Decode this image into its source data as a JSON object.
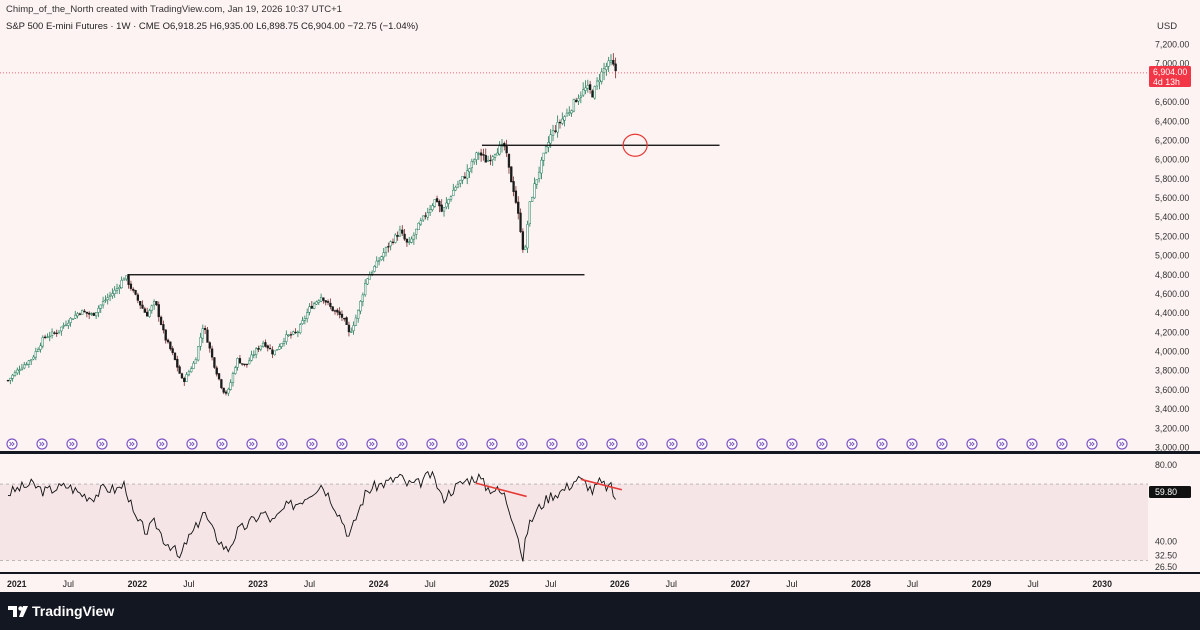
{
  "header": {
    "credit": "Chimp_of_the_North created with TradingView.com, Jan 19, 2026 10:37 UTC+1",
    "symbol_line": "S&P 500 E-mini Futures · 1W · CME  O6,918.25  H6,935.00  L6,898.75  C6,904.00  −72.75 (−1.04%)",
    "currency": "USD"
  },
  "last_price": {
    "value": 6904.0,
    "label": "6,904.00",
    "countdown": "4d 13h",
    "color": "#f23645"
  },
  "colors": {
    "up": "#26a69a",
    "down": "#ef5350",
    "candle_body": "#1b1b1b",
    "accent": "#7e57c2",
    "rsi_line": "#111111",
    "annotation": "#e53935"
  },
  "footer": {
    "brand": "TradingView"
  },
  "chart_data": [
    {
      "type": "candlestick",
      "title": "S&P 500 E-mini Futures",
      "timeframe": "1W",
      "ylim": [
        3000,
        7300
      ],
      "y_ticks": [
        "7,200.00",
        "7,000.00",
        "6,600.00",
        "6,400.00",
        "6,200.00",
        "6,000.00",
        "5,800.00",
        "5,600.00",
        "5,400.00",
        "5,200.00",
        "5,000.00",
        "4,800.00",
        "4,600.00",
        "4,400.00",
        "4,200.00",
        "4,000.00",
        "3,800.00",
        "3,600.00",
        "3,400.00",
        "3,200.00",
        "3,000.00"
      ],
      "x_ticks": [
        "2021",
        "Jul",
        "2022",
        "Jul",
        "2023",
        "Jul",
        "2024",
        "Jul",
        "2025",
        "Jul",
        "2026",
        "Jul",
        "2027",
        "Jul",
        "2028",
        "Jul",
        "2029",
        "Jul",
        "2030"
      ],
      "x_range": [
        2021.0,
        2030.3
      ],
      "price_path": [
        [
          2021.0,
          3700
        ],
        [
          2021.1,
          3830
        ],
        [
          2021.2,
          3930
        ],
        [
          2021.3,
          4150
        ],
        [
          2021.4,
          4200
        ],
        [
          2021.5,
          4320
        ],
        [
          2021.6,
          4420
        ],
        [
          2021.7,
          4380
        ],
        [
          2021.8,
          4530
        ],
        [
          2021.9,
          4650
        ],
        [
          2021.97,
          4790
        ],
        [
          2022.05,
          4590
        ],
        [
          2022.15,
          4380
        ],
        [
          2022.22,
          4520
        ],
        [
          2022.3,
          4150
        ],
        [
          2022.37,
          3960
        ],
        [
          2022.45,
          3680
        ],
        [
          2022.55,
          3900
        ],
        [
          2022.62,
          4280
        ],
        [
          2022.7,
          3900
        ],
        [
          2022.78,
          3600
        ],
        [
          2022.82,
          3560
        ],
        [
          2022.9,
          3920
        ],
        [
          2022.97,
          3850
        ],
        [
          2023.05,
          4000
        ],
        [
          2023.12,
          4100
        ],
        [
          2023.2,
          3980
        ],
        [
          2023.3,
          4150
        ],
        [
          2023.4,
          4200
        ],
        [
          2023.5,
          4450
        ],
        [
          2023.6,
          4580
        ],
        [
          2023.68,
          4450
        ],
        [
          2023.78,
          4350
        ],
        [
          2023.83,
          4180
        ],
        [
          2023.9,
          4400
        ],
        [
          2023.97,
          4750
        ],
        [
          2024.05,
          4900
        ],
        [
          2024.15,
          5100
        ],
        [
          2024.25,
          5250
        ],
        [
          2024.32,
          5100
        ],
        [
          2024.4,
          5300
        ],
        [
          2024.5,
          5500
        ],
        [
          2024.55,
          5600
        ],
        [
          2024.6,
          5450
        ],
        [
          2024.7,
          5700
        ],
        [
          2024.8,
          5850
        ],
        [
          2024.9,
          6080
        ],
        [
          2024.97,
          5980
        ],
        [
          2025.05,
          6100
        ],
        [
          2025.12,
          6140
        ],
        [
          2025.16,
          5850
        ],
        [
          2025.2,
          5650
        ],
        [
          2025.26,
          5200
        ],
        [
          2025.28,
          4950
        ],
        [
          2025.32,
          5500
        ],
        [
          2025.37,
          5750
        ],
        [
          2025.42,
          5950
        ],
        [
          2025.5,
          6250
        ],
        [
          2025.58,
          6400
        ],
        [
          2025.65,
          6500
        ],
        [
          2025.72,
          6650
        ],
        [
          2025.8,
          6750
        ],
        [
          2025.85,
          6680
        ],
        [
          2025.9,
          6850
        ],
        [
          2025.95,
          6960
        ],
        [
          2026.0,
          7010
        ],
        [
          2026.05,
          6904
        ]
      ],
      "horizontal_lines": [
        {
          "price": 6150,
          "from": 2024.93,
          "to": 2026.9
        },
        {
          "price": 4800,
          "from": 2021.99,
          "to": 2025.78
        }
      ],
      "annotation_circle": {
        "x": 2026.2,
        "price": 6150
      },
      "events_row": {
        "count": 38,
        "label": "event-marker"
      }
    },
    {
      "type": "line",
      "title": "RSI",
      "current_value": 59.8,
      "current_label": "59.80",
      "ylim": [
        25,
        83
      ],
      "y_ticks": [
        "80.00",
        "59.80",
        "40.00",
        "32.50",
        "26.50"
      ],
      "band": [
        30,
        70
      ],
      "rsi_path": [
        [
          2021.0,
          65
        ],
        [
          2021.1,
          68
        ],
        [
          2021.2,
          70
        ],
        [
          2021.3,
          66
        ],
        [
          2021.4,
          68
        ],
        [
          2021.5,
          69
        ],
        [
          2021.6,
          65
        ],
        [
          2021.7,
          63
        ],
        [
          2021.8,
          68
        ],
        [
          2021.9,
          67
        ],
        [
          2021.97,
          70
        ],
        [
          2022.05,
          52
        ],
        [
          2022.15,
          45
        ],
        [
          2022.22,
          50
        ],
        [
          2022.3,
          40
        ],
        [
          2022.37,
          37
        ],
        [
          2022.42,
          30
        ],
        [
          2022.48,
          40
        ],
        [
          2022.55,
          46
        ],
        [
          2022.62,
          56
        ],
        [
          2022.7,
          45
        ],
        [
          2022.78,
          38
        ],
        [
          2022.82,
          35
        ],
        [
          2022.9,
          45
        ],
        [
          2022.97,
          48
        ],
        [
          2023.05,
          52
        ],
        [
          2023.12,
          55
        ],
        [
          2023.2,
          50
        ],
        [
          2023.3,
          58
        ],
        [
          2023.4,
          60
        ],
        [
          2023.5,
          65
        ],
        [
          2023.6,
          70
        ],
        [
          2023.68,
          62
        ],
        [
          2023.78,
          50
        ],
        [
          2023.83,
          42
        ],
        [
          2023.9,
          55
        ],
        [
          2023.97,
          66
        ],
        [
          2024.05,
          69
        ],
        [
          2024.15,
          71
        ],
        [
          2024.25,
          74
        ],
        [
          2024.3,
          70
        ],
        [
          2024.4,
          70
        ],
        [
          2024.5,
          75
        ],
        [
          2024.55,
          71
        ],
        [
          2024.6,
          62
        ],
        [
          2024.7,
          68
        ],
        [
          2024.8,
          72
        ],
        [
          2024.9,
          74
        ],
        [
          2024.97,
          68
        ],
        [
          2025.05,
          67
        ],
        [
          2025.12,
          64
        ],
        [
          2025.16,
          56
        ],
        [
          2025.2,
          50
        ],
        [
          2025.24,
          40
        ],
        [
          2025.27,
          29
        ],
        [
          2025.3,
          45
        ],
        [
          2025.37,
          55
        ],
        [
          2025.45,
          61
        ],
        [
          2025.5,
          64
        ],
        [
          2025.58,
          66
        ],
        [
          2025.65,
          69
        ],
        [
          2025.72,
          73
        ],
        [
          2025.8,
          70
        ],
        [
          2025.85,
          66
        ],
        [
          2025.9,
          71
        ],
        [
          2025.95,
          69
        ],
        [
          2026.0,
          68
        ],
        [
          2026.05,
          60
        ]
      ],
      "divergence_lines": [
        {
          "from": [
            2024.88,
            70.5
          ],
          "to": [
            2025.3,
            63.5
          ]
        },
        {
          "from": [
            2025.75,
            72.5
          ],
          "to": [
            2026.09,
            67.0
          ]
        }
      ]
    }
  ]
}
